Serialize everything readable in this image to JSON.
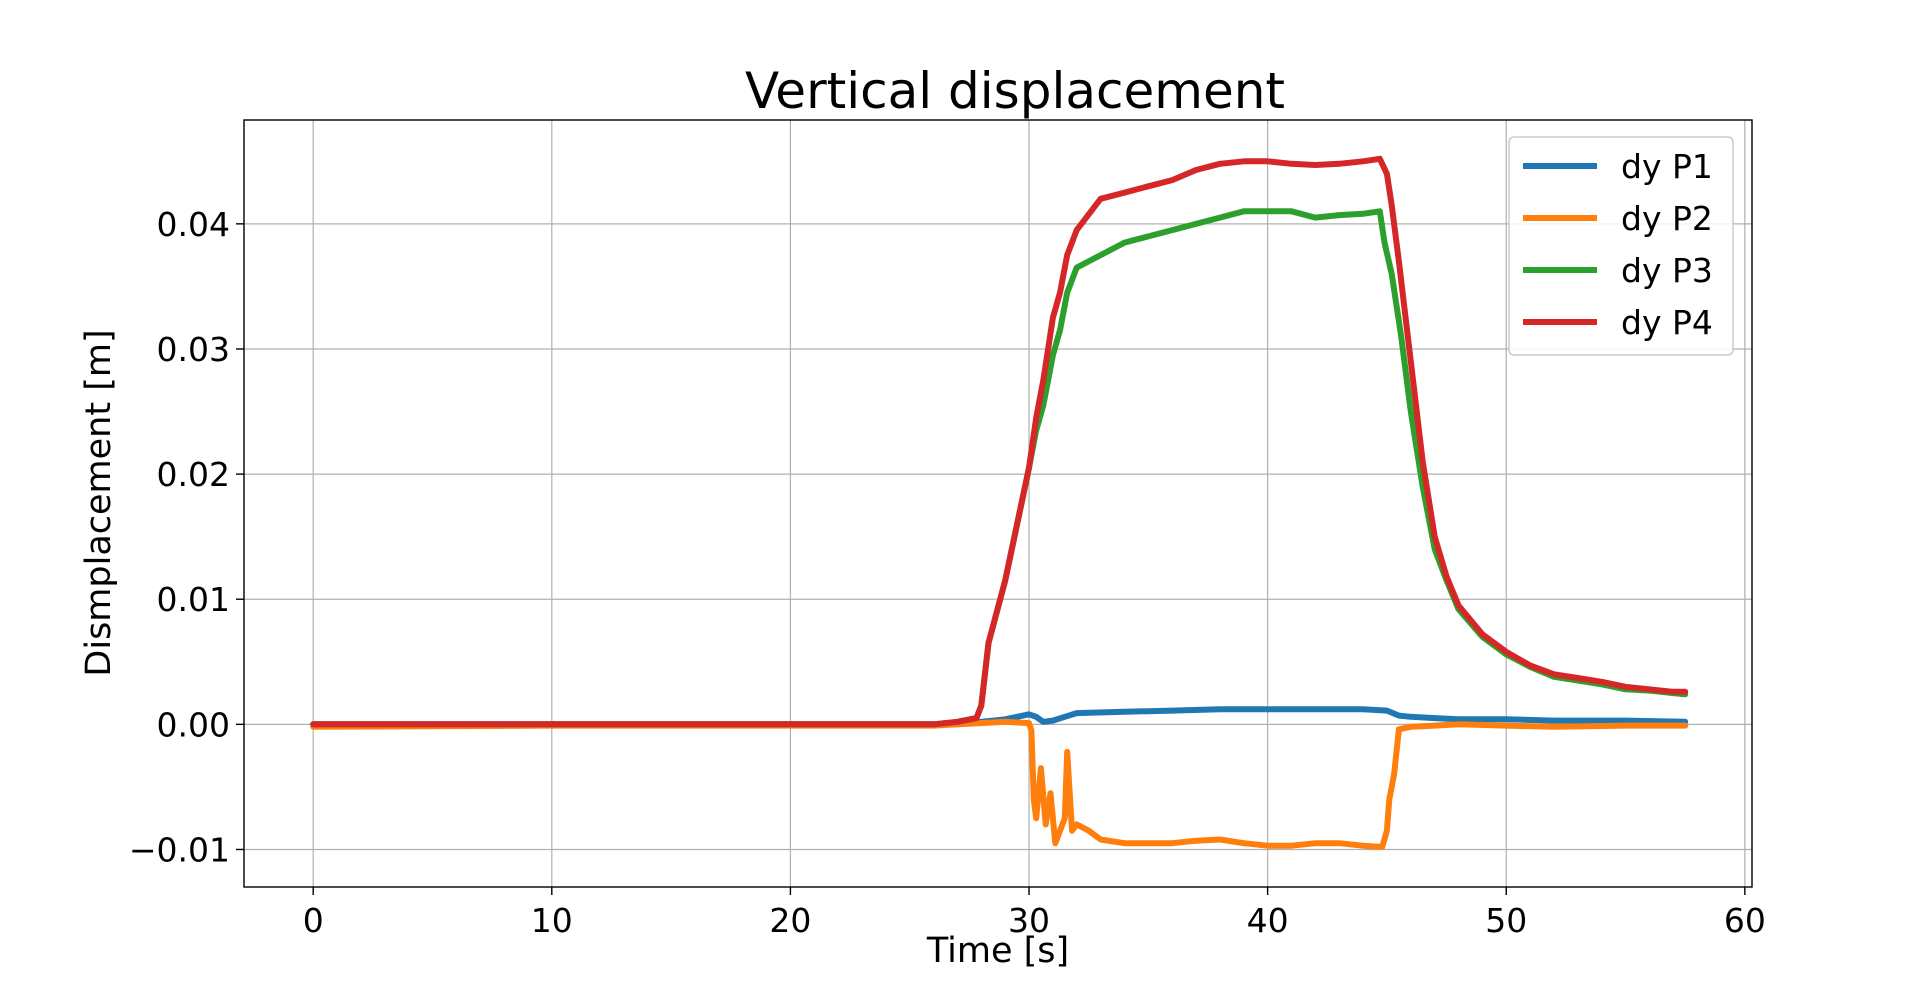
{
  "chart_data": {
    "type": "line",
    "title": "Vertical displacement",
    "xlabel": "Time [s]",
    "ylabel": "Dismplacement [m]",
    "xlim": [
      -2.9,
      60.3
    ],
    "ylim": [
      -0.013,
      0.0483
    ],
    "xticks": [
      0,
      10,
      20,
      30,
      40,
      50,
      60
    ],
    "xtick_labels": [
      "0",
      "10",
      "20",
      "30",
      "40",
      "50",
      "60"
    ],
    "yticks": [
      -0.01,
      0.0,
      0.01,
      0.02,
      0.03,
      0.04
    ],
    "ytick_labels": [
      "−0.01",
      "0.00",
      "0.01",
      "0.02",
      "0.03",
      "0.04"
    ],
    "grid": true,
    "legend_position": "top-right",
    "series": [
      {
        "name": "dy P1",
        "color": "#1f77b4",
        "points": [
          [
            0,
            0
          ],
          [
            10,
            0
          ],
          [
            20,
            0
          ],
          [
            26,
            0
          ],
          [
            27,
            0
          ],
          [
            28,
            0.0002
          ],
          [
            29,
            0.0004
          ],
          [
            29.5,
            0.0006
          ],
          [
            30,
            0.0008
          ],
          [
            30.3,
            0.0006
          ],
          [
            30.6,
            0.0002
          ],
          [
            31,
            0.0003
          ],
          [
            31.5,
            0.0006
          ],
          [
            32,
            0.0009
          ],
          [
            34,
            0.001
          ],
          [
            36,
            0.0011
          ],
          [
            38,
            0.0012
          ],
          [
            40,
            0.0012
          ],
          [
            42,
            0.0012
          ],
          [
            44,
            0.0012
          ],
          [
            45,
            0.0011
          ],
          [
            45.5,
            0.0007
          ],
          [
            46,
            0.0006
          ],
          [
            47,
            0.0005
          ],
          [
            48,
            0.0004
          ],
          [
            50,
            0.0004
          ],
          [
            52,
            0.0003
          ],
          [
            55,
            0.0003
          ],
          [
            57.5,
            0.0002
          ]
        ]
      },
      {
        "name": "dy P2",
        "color": "#ff7f0e",
        "points": [
          [
            0,
            -0.0002
          ],
          [
            10,
            -0.0001
          ],
          [
            20,
            -0.0001
          ],
          [
            26,
            -0.0001
          ],
          [
            27,
            0
          ],
          [
            28,
            0.0001
          ],
          [
            29,
            0.0002
          ],
          [
            30,
            0.0001
          ],
          [
            30.1,
            -0.0005
          ],
          [
            30.2,
            -0.006
          ],
          [
            30.3,
            -0.0075
          ],
          [
            30.5,
            -0.0035
          ],
          [
            30.7,
            -0.008
          ],
          [
            30.9,
            -0.0055
          ],
          [
            31.1,
            -0.0095
          ],
          [
            31.3,
            -0.0085
          ],
          [
            31.5,
            -0.0075
          ],
          [
            31.6,
            -0.0022
          ],
          [
            31.8,
            -0.0085
          ],
          [
            32,
            -0.008
          ],
          [
            32.5,
            -0.0085
          ],
          [
            33,
            -0.0092
          ],
          [
            34,
            -0.0095
          ],
          [
            35,
            -0.0095
          ],
          [
            36,
            -0.0095
          ],
          [
            37,
            -0.0093
          ],
          [
            38,
            -0.0092
          ],
          [
            39,
            -0.0095
          ],
          [
            40,
            -0.0097
          ],
          [
            41,
            -0.0097
          ],
          [
            42,
            -0.0095
          ],
          [
            43,
            -0.0095
          ],
          [
            44,
            -0.0097
          ],
          [
            44.8,
            -0.0098
          ],
          [
            45,
            -0.0085
          ],
          [
            45.1,
            -0.006
          ],
          [
            45.3,
            -0.004
          ],
          [
            45.5,
            -0.0004
          ],
          [
            46,
            -0.0002
          ],
          [
            47,
            -0.0001
          ],
          [
            48,
            0
          ],
          [
            50,
            -0.0001
          ],
          [
            52,
            -0.0002
          ],
          [
            55,
            -0.0001
          ],
          [
            57.5,
            -0.0001
          ]
        ]
      },
      {
        "name": "dy P3",
        "color": "#2ca02c",
        "points": [
          [
            0,
            0
          ],
          [
            10,
            0
          ],
          [
            20,
            0
          ],
          [
            26,
            0
          ],
          [
            27,
            0.0002
          ],
          [
            27.8,
            0.0005
          ],
          [
            28,
            0.0015
          ],
          [
            28.3,
            0.0065
          ],
          [
            29,
            0.0115
          ],
          [
            30,
            0.0205
          ],
          [
            30.3,
            0.0235
          ],
          [
            30.6,
            0.0255
          ],
          [
            31,
            0.0295
          ],
          [
            31.3,
            0.0315
          ],
          [
            31.6,
            0.0345
          ],
          [
            32,
            0.0365
          ],
          [
            33,
            0.0375
          ],
          [
            34,
            0.0385
          ],
          [
            35,
            0.039
          ],
          [
            36,
            0.0395
          ],
          [
            37,
            0.04
          ],
          [
            38,
            0.0405
          ],
          [
            39,
            0.041
          ],
          [
            40,
            0.041
          ],
          [
            41,
            0.041
          ],
          [
            42,
            0.0405
          ],
          [
            43,
            0.0407
          ],
          [
            44,
            0.0408
          ],
          [
            44.7,
            0.041
          ],
          [
            44.9,
            0.0385
          ],
          [
            45.2,
            0.036
          ],
          [
            45.6,
            0.031
          ],
          [
            46,
            0.025
          ],
          [
            46.5,
            0.019
          ],
          [
            47,
            0.014
          ],
          [
            47.5,
            0.0115
          ],
          [
            48,
            0.0092
          ],
          [
            49,
            0.007
          ],
          [
            50,
            0.0056
          ],
          [
            51,
            0.0046
          ],
          [
            52,
            0.0038
          ],
          [
            53,
            0.0035
          ],
          [
            54,
            0.0032
          ],
          [
            55,
            0.0028
          ],
          [
            56,
            0.0027
          ],
          [
            57,
            0.0025
          ],
          [
            57.5,
            0.0024
          ]
        ]
      },
      {
        "name": "dy P4",
        "color": "#d62728",
        "points": [
          [
            0,
            0
          ],
          [
            10,
            0
          ],
          [
            20,
            0
          ],
          [
            26,
            0
          ],
          [
            27,
            0.0002
          ],
          [
            27.8,
            0.0005
          ],
          [
            28,
            0.0015
          ],
          [
            28.3,
            0.0065
          ],
          [
            29,
            0.0115
          ],
          [
            30,
            0.0205
          ],
          [
            30.3,
            0.0245
          ],
          [
            30.6,
            0.0275
          ],
          [
            31,
            0.0325
          ],
          [
            31.3,
            0.0345
          ],
          [
            31.6,
            0.0375
          ],
          [
            32,
            0.0395
          ],
          [
            33,
            0.042
          ],
          [
            34,
            0.0425
          ],
          [
            35,
            0.043
          ],
          [
            36,
            0.0435
          ],
          [
            37,
            0.0443
          ],
          [
            38,
            0.0448
          ],
          [
            39,
            0.045
          ],
          [
            40,
            0.045
          ],
          [
            41,
            0.0448
          ],
          [
            42,
            0.0447
          ],
          [
            43,
            0.0448
          ],
          [
            44,
            0.045
          ],
          [
            44.7,
            0.0452
          ],
          [
            45,
            0.044
          ],
          [
            45.2,
            0.0415
          ],
          [
            45.5,
            0.037
          ],
          [
            46,
            0.029
          ],
          [
            46.5,
            0.021
          ],
          [
            47,
            0.015
          ],
          [
            47.5,
            0.0118
          ],
          [
            48,
            0.0095
          ],
          [
            49,
            0.0072
          ],
          [
            50,
            0.0058
          ],
          [
            51,
            0.0047
          ],
          [
            52,
            0.004
          ],
          [
            53,
            0.0037
          ],
          [
            54,
            0.0034
          ],
          [
            55,
            0.003
          ],
          [
            56,
            0.0028
          ],
          [
            57,
            0.0026
          ],
          [
            57.5,
            0.0026
          ]
        ]
      }
    ]
  }
}
